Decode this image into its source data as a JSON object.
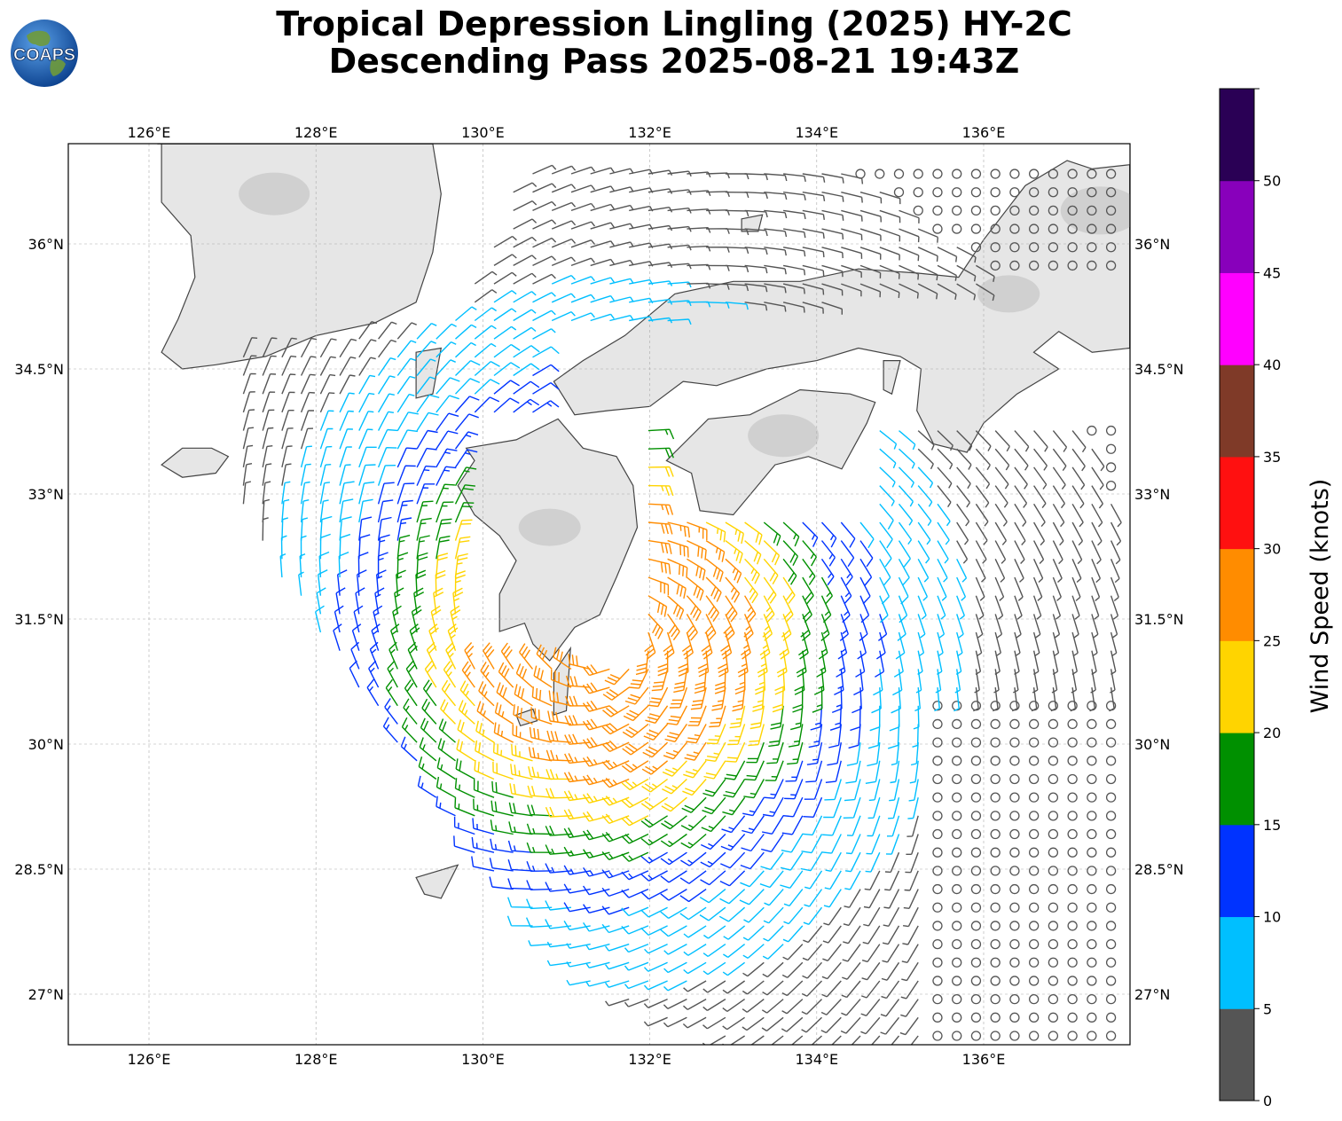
{
  "title": {
    "line1": "Tropical Depression Lingling (2025) HY-2C",
    "line2": "Descending Pass 2025-08-21 19:43Z"
  },
  "logo": {
    "text": "COAPS"
  },
  "map": {
    "lon_range": [
      125.0,
      137.75
    ],
    "lat_range": [
      26.4,
      37.2
    ],
    "lon_ticks": [
      {
        "value": 126,
        "label": "126°E"
      },
      {
        "value": 128,
        "label": "128°E"
      },
      {
        "value": 130,
        "label": "130°E"
      },
      {
        "value": 132,
        "label": "132°E"
      },
      {
        "value": 134,
        "label": "134°E"
      },
      {
        "value": 136,
        "label": "136°E"
      }
    ],
    "lat_ticks": [
      {
        "value": 27,
        "label": "27°N"
      },
      {
        "value": 28.5,
        "label": "28.5°N"
      },
      {
        "value": 30,
        "label": "30°N"
      },
      {
        "value": 31.5,
        "label": "31.5°N"
      },
      {
        "value": 33,
        "label": "33°N"
      },
      {
        "value": 34.5,
        "label": "34.5°N"
      },
      {
        "value": 36,
        "label": "36°N"
      }
    ],
    "gridlines": true,
    "land_color": "#e6e6e6",
    "coast_color": "#444444"
  },
  "colorbar": {
    "label": "Wind Speed (knots)",
    "bins": [
      {
        "min": 0,
        "max": 5,
        "color": "#555555"
      },
      {
        "min": 5,
        "max": 10,
        "color": "#00bfff"
      },
      {
        "min": 10,
        "max": 15,
        "color": "#0033ff"
      },
      {
        "min": 15,
        "max": 20,
        "color": "#009000"
      },
      {
        "min": 20,
        "max": 25,
        "color": "#ffd400"
      },
      {
        "min": 25,
        "max": 30,
        "color": "#ff8c00"
      },
      {
        "min": 30,
        "max": 35,
        "color": "#ff1010"
      },
      {
        "min": 35,
        "max": 40,
        "color": "#7f3a28"
      },
      {
        "min": 40,
        "max": 45,
        "color": "#ff00ff"
      },
      {
        "min": 45,
        "max": 50,
        "color": "#8800bb"
      },
      {
        "min": 50,
        "max": 55,
        "color": "#2a0055"
      }
    ],
    "tick_labels": [
      "0",
      "5",
      "10",
      "15",
      "20",
      "25",
      "30",
      "35",
      "40",
      "45",
      "50"
    ]
  },
  "chart_data": {
    "type": "scatter",
    "title": "Tropical Depression Lingling (2025) HY-2C Descending Pass 2025-08-21 19:43Z",
    "xlabel": "",
    "ylabel": "",
    "colorbar_label": "Wind Speed (knots)",
    "xlim": [
      125.0,
      137.75
    ],
    "ylim": [
      26.4,
      37.2
    ],
    "circulation_center": {
      "lon": 131.5,
      "lat": 31.3
    },
    "swath_polygon": [
      [
        127.0,
        34.8
      ],
      [
        129.5,
        34.9
      ],
      [
        130.5,
        36.9
      ],
      [
        137.75,
        36.9
      ],
      [
        137.75,
        26.4
      ],
      [
        133.0,
        26.4
      ],
      [
        131.0,
        27.2
      ],
      [
        129.3,
        29.5
      ],
      [
        128.0,
        31.3
      ],
      [
        127.0,
        33.0
      ]
    ],
    "wind_barbs_sample": [
      {
        "lon": 131.5,
        "lat": 31.0,
        "speed_kt": 23
      },
      {
        "lon": 132.0,
        "lat": 30.6,
        "speed_kt": 22
      },
      {
        "lon": 131.4,
        "lat": 31.7,
        "speed_kt": 27
      },
      {
        "lon": 131.3,
        "lat": 30.9,
        "speed_kt": 26
      },
      {
        "lon": 132.8,
        "lat": 31.0,
        "speed_kt": 18
      },
      {
        "lon": 133.6,
        "lat": 30.3,
        "speed_kt": 13
      },
      {
        "lon": 134.6,
        "lat": 29.2,
        "speed_kt": 8
      },
      {
        "lon": 136.5,
        "lat": 28.5,
        "speed_kt": 2
      },
      {
        "lon": 129.5,
        "lat": 33.6,
        "speed_kt": 12
      },
      {
        "lon": 128.0,
        "lat": 34.0,
        "speed_kt": 8
      }
    ]
  }
}
